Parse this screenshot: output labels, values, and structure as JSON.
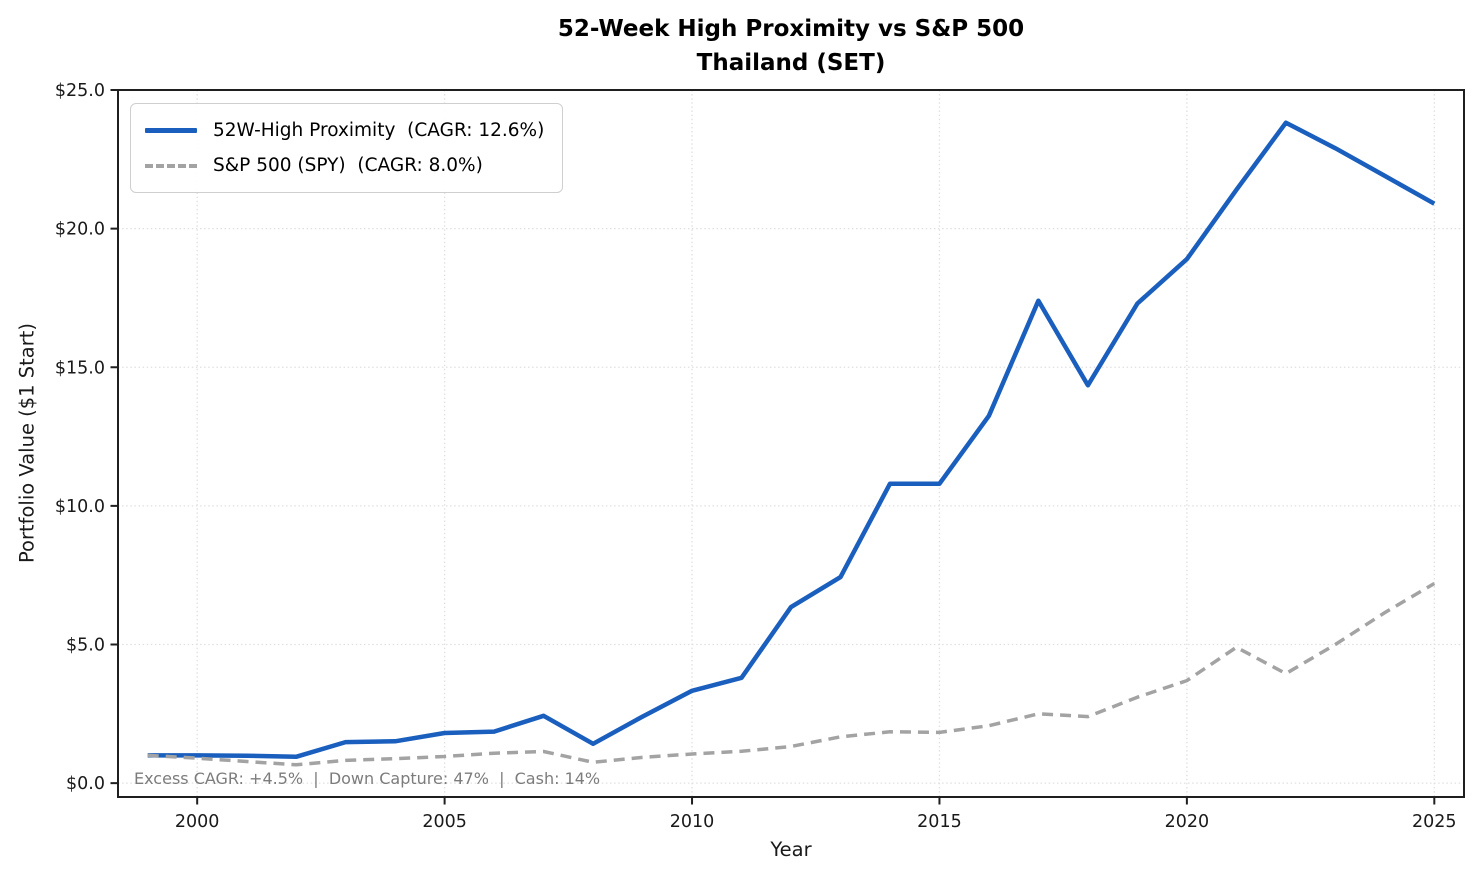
{
  "chart_data": {
    "type": "line",
    "title": "52-Week High Proximity vs S&P 500",
    "subtitle": "Thailand (SET)",
    "xlabel": "Year",
    "ylabel": "Portfolio Value ($1 Start)",
    "annotation": "Excess CAGR: +4.5%  |  Down Capture: 47%  |  Cash: 14%",
    "grid": true,
    "legend_position": "upper-left",
    "xlim": [
      1998.4,
      2025.6
    ],
    "ylim": [
      -0.5,
      25.0
    ],
    "x_ticks": [
      2000,
      2005,
      2010,
      2015,
      2020,
      2025
    ],
    "x_tick_labels": [
      "2000",
      "2005",
      "2010",
      "2015",
      "2020",
      "2025"
    ],
    "y_ticks": [
      0,
      5,
      10,
      15,
      20,
      25
    ],
    "y_tick_labels": [
      "$0.0",
      "$5.0",
      "$10.0",
      "$15.0",
      "$20.0",
      "$25.0"
    ],
    "x": [
      1999,
      2000,
      2001,
      2002,
      2003,
      2004,
      2005,
      2006,
      2007,
      2008,
      2009,
      2010,
      2011,
      2012,
      2013,
      2014,
      2015,
      2016,
      2017,
      2018,
      2019,
      2020,
      2021,
      2022,
      2023,
      2024,
      2025
    ],
    "series": [
      {
        "name": "52W-High Proximity  (CAGR: 12.6%)",
        "color": "#1a5fbe",
        "style": "solid",
        "line_width": 4.5,
        "values": [
          1.0,
          1.0,
          0.99,
          0.95,
          1.48,
          1.51,
          1.81,
          1.86,
          2.43,
          1.42,
          2.4,
          3.33,
          3.8,
          6.35,
          7.43,
          10.8,
          10.8,
          13.25,
          17.4,
          14.35,
          17.3,
          18.9,
          21.4,
          23.82,
          22.9,
          21.9,
          20.9
        ]
      },
      {
        "name": "S&P 500 (SPY)  (CAGR: 8.0%)",
        "color": "#a3a3a3",
        "style": "dashed",
        "line_width": 3.5,
        "values": [
          1.0,
          0.9,
          0.78,
          0.66,
          0.82,
          0.88,
          0.96,
          1.08,
          1.14,
          0.75,
          0.93,
          1.05,
          1.15,
          1.32,
          1.67,
          1.85,
          1.83,
          2.07,
          2.5,
          2.4,
          3.1,
          3.7,
          4.9,
          3.95,
          5.0,
          6.15,
          7.2
        ]
      }
    ],
    "style_colors": {
      "spine": "#1f1f1f",
      "grid": "#e0e0e0",
      "tick_label": "#1a1a1a",
      "annotation_text": "#7c7c7c"
    }
  }
}
